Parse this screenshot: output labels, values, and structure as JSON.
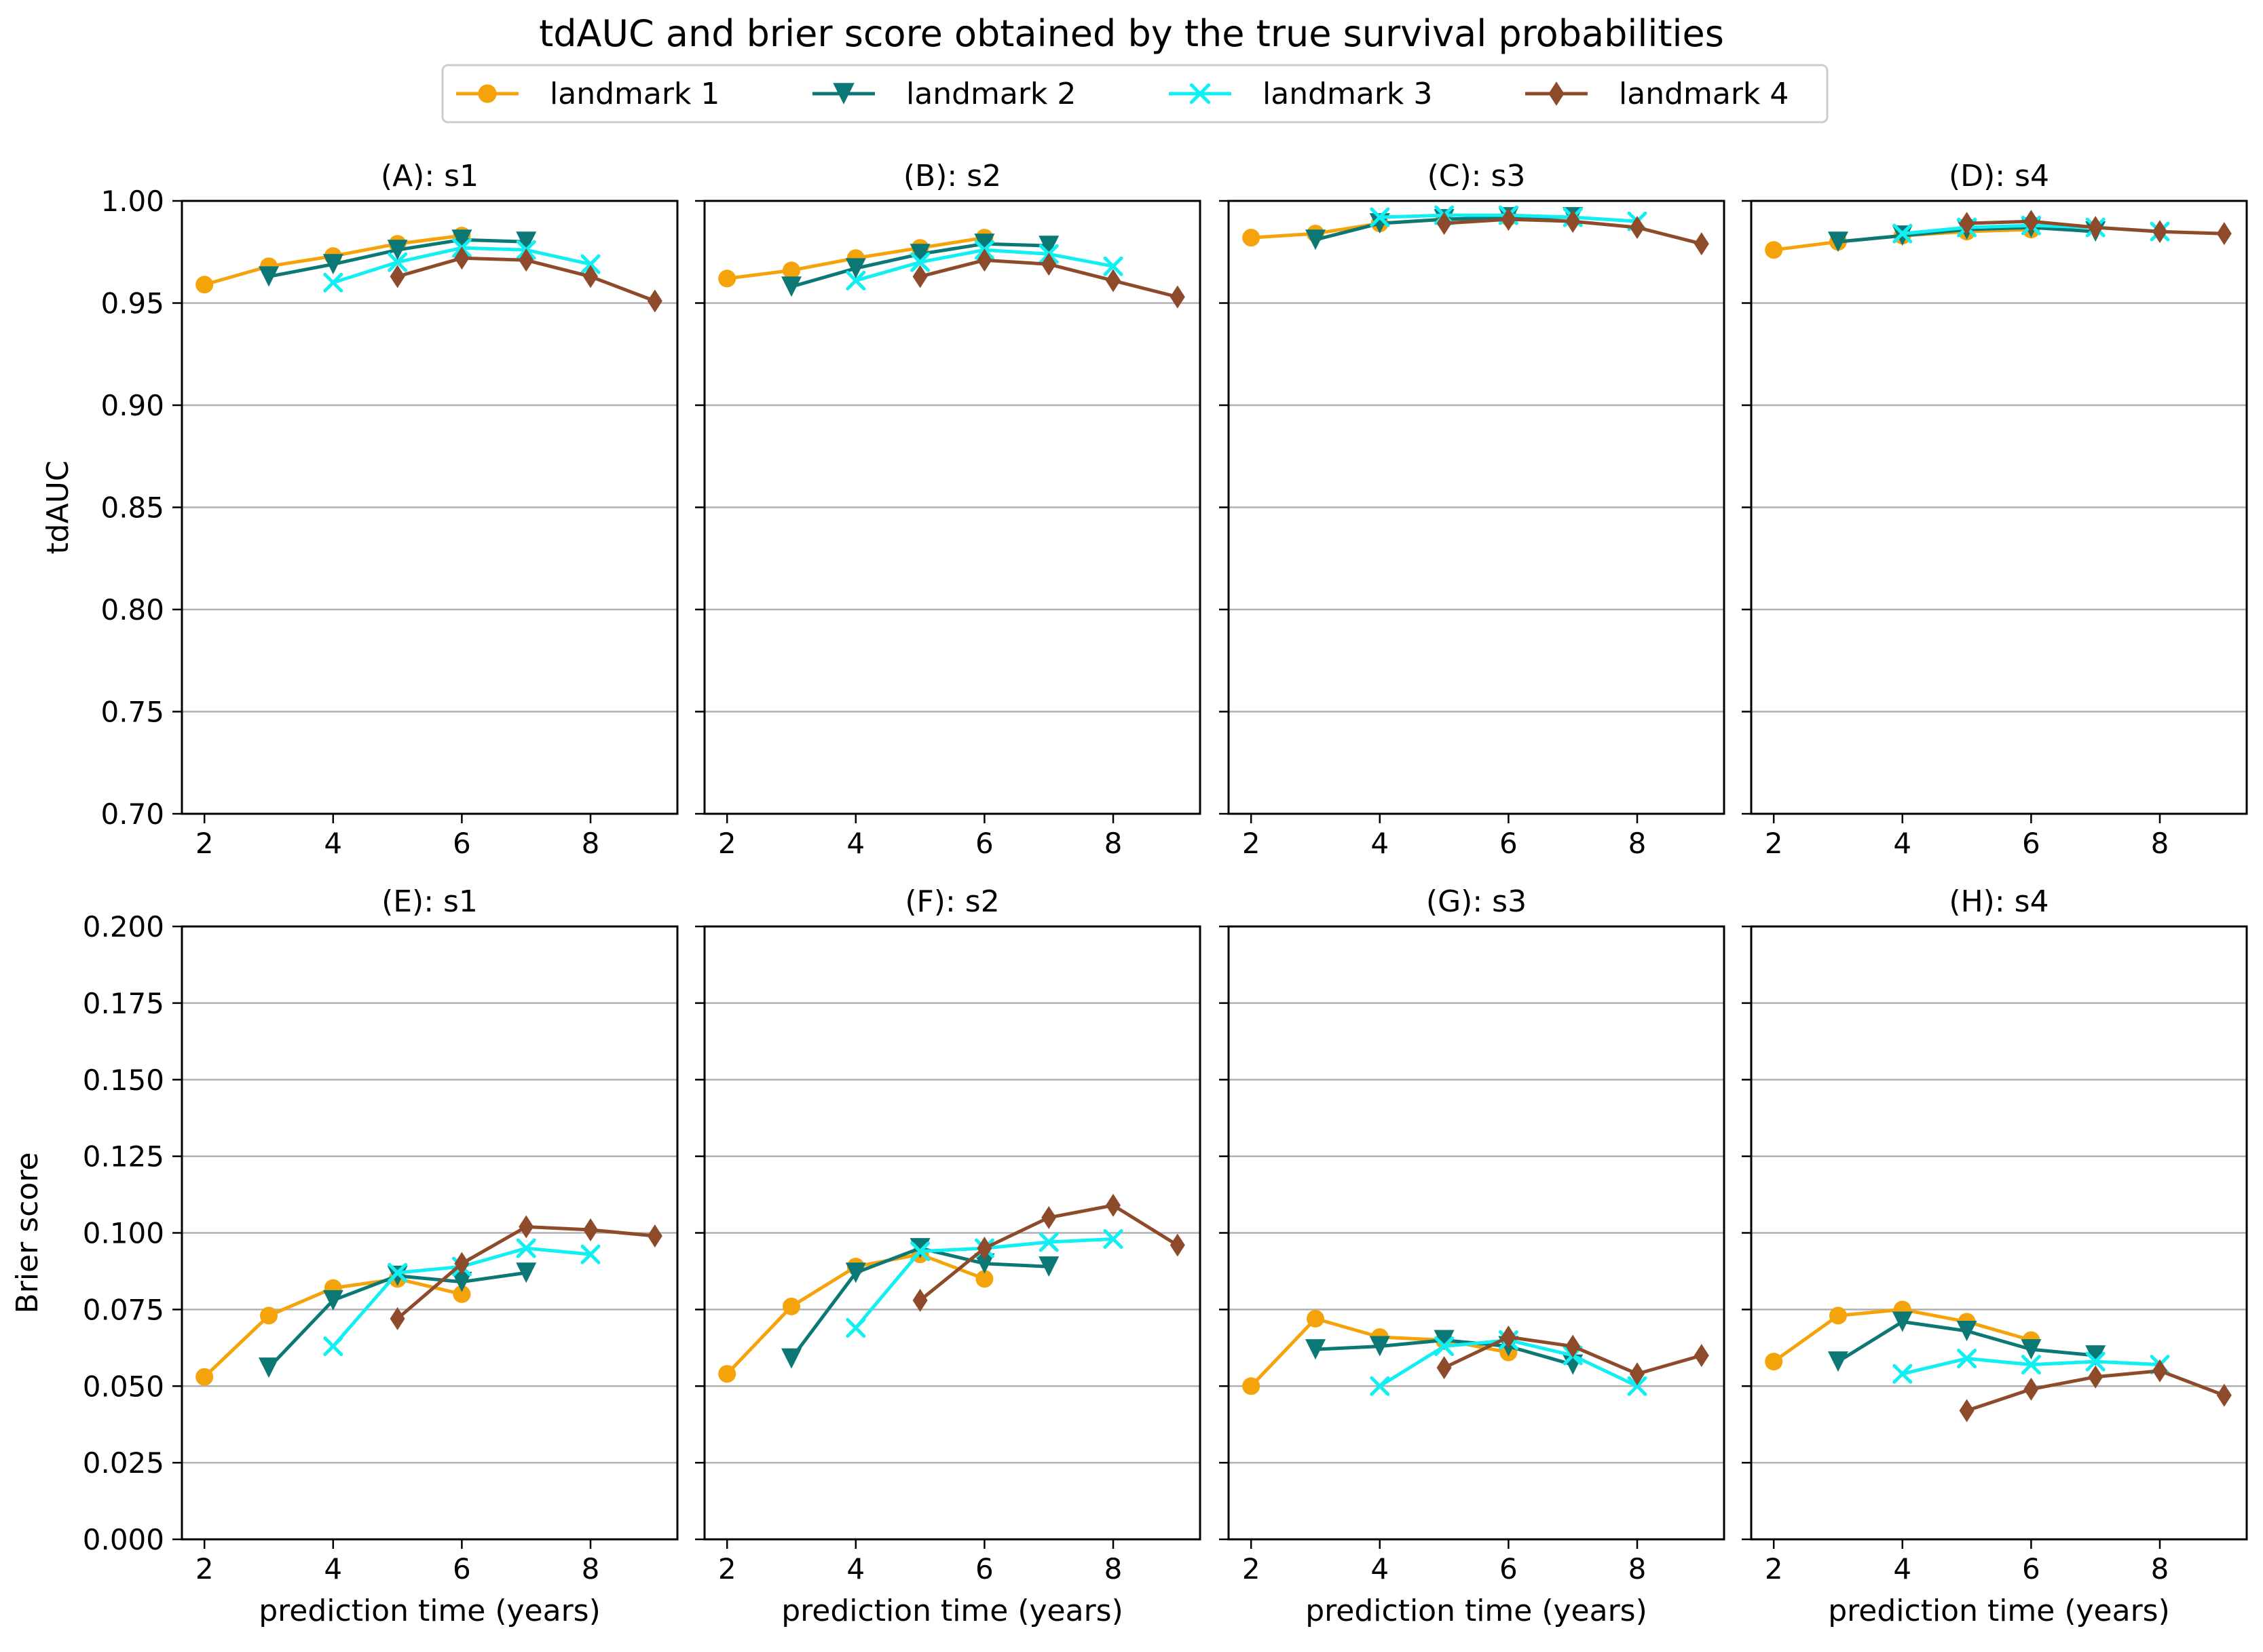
{
  "figure": {
    "title": "tdAUC and brier score obtained by the true survival probabilities"
  },
  "legend": {
    "placement": "top-center",
    "entries": [
      {
        "label": "landmark 1",
        "color": "#f5a30a",
        "marker": "circle"
      },
      {
        "label": "landmark 2",
        "color": "#0b7875",
        "marker": "triangle-down"
      },
      {
        "label": "landmark 3",
        "color": "#12eff2",
        "marker": "x"
      },
      {
        "label": "landmark 4",
        "color": "#8e4b2c",
        "marker": "thin-diamond"
      }
    ]
  },
  "chart_data": [
    {
      "type": "line",
      "title": "(A): s1",
      "xlabel": "",
      "ylabel": "tdAUC",
      "xlim": [
        1.65,
        9.35
      ],
      "ylim": [
        0.7,
        1.0
      ],
      "xticks": [
        "2",
        "4",
        "6",
        "8"
      ],
      "yticks": [
        "0.70",
        "0.75",
        "0.80",
        "0.85",
        "0.90",
        "0.95",
        "1.00"
      ],
      "grid": "horizontal",
      "series": [
        {
          "name": "landmark 1",
          "x": [
            2,
            3,
            4,
            5,
            6
          ],
          "y": [
            0.959,
            0.968,
            0.973,
            0.979,
            0.983
          ]
        },
        {
          "name": "landmark 2",
          "x": [
            3,
            4,
            5,
            6,
            7
          ],
          "y": [
            0.963,
            0.969,
            0.976,
            0.981,
            0.98
          ]
        },
        {
          "name": "landmark 3",
          "x": [
            4,
            5,
            6,
            7,
            8
          ],
          "y": [
            0.96,
            0.97,
            0.977,
            0.976,
            0.969
          ]
        },
        {
          "name": "landmark 4",
          "x": [
            5,
            6,
            7,
            8,
            9
          ],
          "y": [
            0.963,
            0.972,
            0.971,
            0.963,
            0.951
          ]
        }
      ]
    },
    {
      "type": "line",
      "title": "(B): s2",
      "xlabel": "",
      "ylabel": "",
      "xlim": [
        1.65,
        9.35
      ],
      "ylim": [
        0.7,
        1.0
      ],
      "xticks": [
        "2",
        "4",
        "6",
        "8"
      ],
      "yticks": [],
      "grid": "horizontal",
      "series": [
        {
          "name": "landmark 1",
          "x": [
            2,
            3,
            4,
            5,
            6
          ],
          "y": [
            0.962,
            0.966,
            0.972,
            0.977,
            0.982
          ]
        },
        {
          "name": "landmark 2",
          "x": [
            3,
            4,
            5,
            6,
            7
          ],
          "y": [
            0.958,
            0.967,
            0.974,
            0.979,
            0.978
          ]
        },
        {
          "name": "landmark 3",
          "x": [
            4,
            5,
            6,
            7,
            8
          ],
          "y": [
            0.961,
            0.97,
            0.976,
            0.974,
            0.968
          ]
        },
        {
          "name": "landmark 4",
          "x": [
            5,
            6,
            7,
            8,
            9
          ],
          "y": [
            0.963,
            0.971,
            0.969,
            0.961,
            0.953
          ]
        }
      ]
    },
    {
      "type": "line",
      "title": "(C): s3",
      "xlabel": "",
      "ylabel": "",
      "xlim": [
        1.65,
        9.35
      ],
      "ylim": [
        0.7,
        1.0
      ],
      "xticks": [
        "2",
        "4",
        "6",
        "8"
      ],
      "yticks": [],
      "grid": "horizontal",
      "series": [
        {
          "name": "landmark 1",
          "x": [
            2,
            3,
            4,
            5,
            6
          ],
          "y": [
            0.982,
            0.984,
            0.989,
            0.991,
            0.992
          ]
        },
        {
          "name": "landmark 2",
          "x": [
            3,
            4,
            5,
            6,
            7
          ],
          "y": [
            0.981,
            0.989,
            0.991,
            0.992,
            0.992
          ]
        },
        {
          "name": "landmark 3",
          "x": [
            4,
            5,
            6,
            7,
            8
          ],
          "y": [
            0.992,
            0.993,
            0.993,
            0.992,
            0.99
          ]
        },
        {
          "name": "landmark 4",
          "x": [
            5,
            6,
            7,
            8,
            9
          ],
          "y": [
            0.989,
            0.991,
            0.99,
            0.987,
            0.979
          ]
        }
      ]
    },
    {
      "type": "line",
      "title": "(D): s4",
      "xlabel": "",
      "ylabel": "",
      "xlim": [
        1.65,
        9.35
      ],
      "ylim": [
        0.7,
        1.0
      ],
      "xticks": [
        "2",
        "4",
        "6",
        "8"
      ],
      "yticks": [],
      "grid": "horizontal",
      "series": [
        {
          "name": "landmark 1",
          "x": [
            2,
            3,
            4,
            5,
            6
          ],
          "y": [
            0.976,
            0.98,
            0.983,
            0.985,
            0.986
          ]
        },
        {
          "name": "landmark 2",
          "x": [
            3,
            4,
            5,
            6,
            7
          ],
          "y": [
            0.98,
            0.983,
            0.986,
            0.987,
            0.985
          ]
        },
        {
          "name": "landmark 3",
          "x": [
            4,
            5,
            6,
            7,
            8
          ],
          "y": [
            0.984,
            0.987,
            0.988,
            0.987,
            0.985
          ]
        },
        {
          "name": "landmark 4",
          "x": [
            5,
            6,
            7,
            8,
            9
          ],
          "y": [
            0.989,
            0.99,
            0.987,
            0.985,
            0.984
          ]
        }
      ]
    },
    {
      "type": "line",
      "title": "(E): s1",
      "xlabel": "prediction time (years)",
      "ylabel": "Brier score",
      "xlim": [
        1.65,
        9.35
      ],
      "ylim": [
        0.0,
        0.2
      ],
      "xticks": [
        "2",
        "4",
        "6",
        "8"
      ],
      "yticks": [
        "0.000",
        "0.025",
        "0.050",
        "0.075",
        "0.100",
        "0.125",
        "0.150",
        "0.175",
        "0.200"
      ],
      "grid": "horizontal",
      "series": [
        {
          "name": "landmark 1",
          "x": [
            2,
            3,
            4,
            5,
            6
          ],
          "y": [
            0.053,
            0.073,
            0.082,
            0.085,
            0.08
          ]
        },
        {
          "name": "landmark 2",
          "x": [
            3,
            4,
            5,
            6,
            7
          ],
          "y": [
            0.056,
            0.078,
            0.086,
            0.084,
            0.087
          ]
        },
        {
          "name": "landmark 3",
          "x": [
            4,
            5,
            6,
            7,
            8
          ],
          "y": [
            0.063,
            0.087,
            0.089,
            0.095,
            0.093
          ]
        },
        {
          "name": "landmark 4",
          "x": [
            5,
            6,
            7,
            8,
            9
          ],
          "y": [
            0.072,
            0.09,
            0.102,
            0.101,
            0.099
          ]
        }
      ]
    },
    {
      "type": "line",
      "title": "(F): s2",
      "xlabel": "prediction time (years)",
      "ylabel": "",
      "xlim": [
        1.65,
        9.35
      ],
      "ylim": [
        0.0,
        0.2
      ],
      "xticks": [
        "2",
        "4",
        "6",
        "8"
      ],
      "yticks": [],
      "grid": "horizontal",
      "series": [
        {
          "name": "landmark 1",
          "x": [
            2,
            3,
            4,
            5,
            6
          ],
          "y": [
            0.054,
            0.076,
            0.089,
            0.093,
            0.085
          ]
        },
        {
          "name": "landmark 2",
          "x": [
            3,
            4,
            5,
            6,
            7
          ],
          "y": [
            0.059,
            0.087,
            0.095,
            0.09,
            0.089
          ]
        },
        {
          "name": "landmark 3",
          "x": [
            4,
            5,
            6,
            7,
            8
          ],
          "y": [
            0.069,
            0.094,
            0.095,
            0.097,
            0.098
          ]
        },
        {
          "name": "landmark 4",
          "x": [
            5,
            6,
            7,
            8,
            9
          ],
          "y": [
            0.078,
            0.095,
            0.105,
            0.109,
            0.096
          ]
        }
      ]
    },
    {
      "type": "line",
      "title": "(G): s3",
      "xlabel": "prediction time (years)",
      "ylabel": "",
      "xlim": [
        1.65,
        9.35
      ],
      "ylim": [
        0.0,
        0.2
      ],
      "xticks": [
        "2",
        "4",
        "6",
        "8"
      ],
      "yticks": [],
      "grid": "horizontal",
      "series": [
        {
          "name": "landmark 1",
          "x": [
            2,
            3,
            4,
            5,
            6
          ],
          "y": [
            0.05,
            0.072,
            0.066,
            0.065,
            0.061
          ]
        },
        {
          "name": "landmark 2",
          "x": [
            3,
            4,
            5,
            6,
            7
          ],
          "y": [
            0.062,
            0.063,
            0.065,
            0.063,
            0.057
          ]
        },
        {
          "name": "landmark 3",
          "x": [
            4,
            5,
            6,
            7,
            8
          ],
          "y": [
            0.05,
            0.063,
            0.065,
            0.06,
            0.05
          ]
        },
        {
          "name": "landmark 4",
          "x": [
            5,
            6,
            7,
            8,
            9
          ],
          "y": [
            0.056,
            0.066,
            0.063,
            0.054,
            0.06
          ]
        }
      ]
    },
    {
      "type": "line",
      "title": "(H): s4",
      "xlabel": "prediction time (years)",
      "ylabel": "",
      "xlim": [
        1.65,
        9.35
      ],
      "ylim": [
        0.0,
        0.2
      ],
      "xticks": [
        "2",
        "4",
        "6",
        "8"
      ],
      "yticks": [],
      "grid": "horizontal",
      "series": [
        {
          "name": "landmark 1",
          "x": [
            2,
            3,
            4,
            5,
            6
          ],
          "y": [
            0.058,
            0.073,
            0.075,
            0.071,
            0.065
          ]
        },
        {
          "name": "landmark 2",
          "x": [
            3,
            4,
            5,
            6,
            7
          ],
          "y": [
            0.058,
            0.071,
            0.068,
            0.062,
            0.06
          ]
        },
        {
          "name": "landmark 3",
          "x": [
            4,
            5,
            6,
            7,
            8
          ],
          "y": [
            0.054,
            0.059,
            0.057,
            0.058,
            0.057
          ]
        },
        {
          "name": "landmark 4",
          "x": [
            5,
            6,
            7,
            8,
            9
          ],
          "y": [
            0.042,
            0.049,
            0.053,
            0.055,
            0.047
          ]
        }
      ]
    }
  ]
}
